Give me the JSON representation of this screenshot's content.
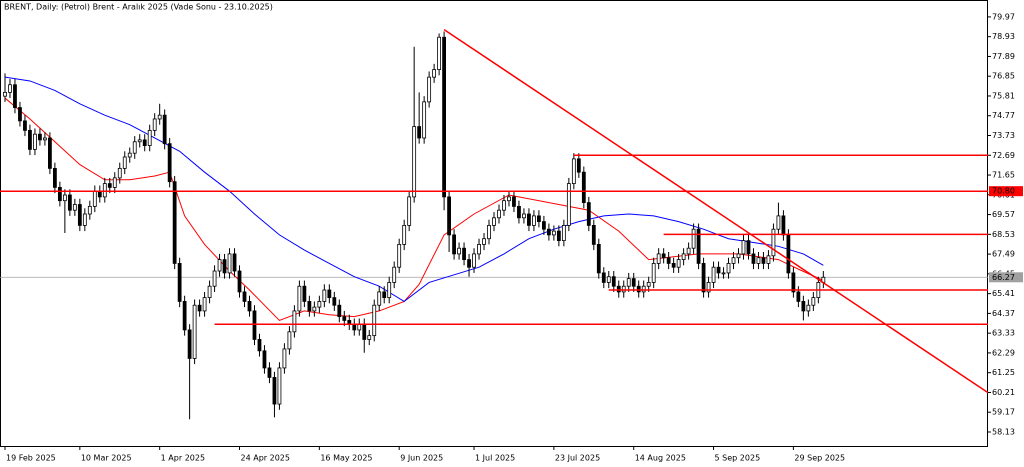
{
  "chart_data": {
    "type": "candlestick",
    "title": "BRENT, Daily:  (Petrol) Brent - Aralık 2025 (Vade Sonu - 23.10.2025)",
    "open": [
      75.8,
      76.0,
      76.4,
      75.2,
      74.5,
      74.0,
      73.0,
      73.8,
      73.5,
      73.6,
      72.0,
      71.0,
      70.3,
      70.6,
      69.8,
      70.1,
      69.0,
      69.6,
      70.0,
      70.8,
      70.5,
      71.2,
      71.0,
      71.5,
      72.0,
      72.6,
      72.8,
      73.4,
      73.5,
      73.2,
      74.0,
      74.6,
      74.8,
      73.3,
      71.3,
      67.0,
      65.0,
      63.5,
      62.0,
      64.8,
      64.5,
      65.2,
      65.8,
      66.6,
      67.2,
      66.5,
      67.5,
      66.6,
      65.5,
      65.0,
      64.5,
      63.0,
      62.4,
      61.5,
      61.0,
      59.6,
      61.5,
      62.5,
      63.4,
      64.5,
      65.8,
      65.0,
      64.5,
      64.7,
      65.0,
      65.6,
      65.2,
      64.8,
      64.2,
      64.0,
      63.8,
      63.5,
      63.8,
      63.0,
      63.2,
      64.8,
      65.5,
      65.2,
      66.0,
      66.8,
      68.0,
      69.0,
      70.5,
      74.2,
      73.6,
      75.5,
      76.8,
      77.2,
      78.9,
      70.5,
      68.5,
      67.5,
      67.8,
      67.2,
      66.8,
      67.5,
      68.0,
      68.3,
      69.0,
      69.4,
      69.8,
      70.3,
      70.5,
      70.0,
      69.4,
      69.6,
      69.0,
      69.5,
      69.2,
      68.8,
      68.5,
      68.7,
      68.2,
      69.0,
      71.2,
      72.5,
      71.8,
      70.2,
      69.0,
      68.0,
      66.5,
      66.0,
      66.3,
      65.8,
      65.5,
      65.8,
      66.2,
      65.8,
      65.5,
      65.8,
      66.0,
      67.0,
      67.5,
      67.3,
      67.0,
      66.8,
      67.2,
      67.5,
      67.8,
      68.8,
      67.0,
      65.5,
      66.0,
      66.8,
      66.5,
      66.5,
      67.0,
      67.3,
      67.5,
      68.2,
      67.5,
      67.0,
      67.3,
      67.0,
      67.4,
      68.8,
      69.5,
      68.5,
      66.5,
      65.5,
      65.0,
      64.5,
      64.8,
      65.2,
      66.0
    ],
    "high": [
      77.0,
      76.7,
      76.7,
      75.5,
      74.8,
      74.3,
      74.1,
      74.1,
      73.9,
      73.9,
      72.3,
      71.3,
      70.9,
      70.9,
      70.4,
      70.4,
      69.9,
      70.3,
      71.1,
      71.1,
      71.5,
      71.5,
      71.8,
      72.3,
      72.9,
      73.1,
      73.7,
      73.8,
      73.8,
      74.3,
      74.9,
      75.4,
      75.1,
      73.6,
      71.6,
      67.3,
      65.3,
      63.8,
      65.1,
      65.1,
      65.5,
      66.1,
      66.9,
      67.5,
      67.5,
      67.8,
      67.8,
      66.9,
      65.8,
      65.3,
      64.8,
      63.3,
      62.7,
      61.8,
      61.3,
      61.8,
      62.8,
      63.7,
      64.8,
      66.1,
      66.1,
      65.3,
      65.0,
      65.3,
      65.9,
      65.9,
      65.5,
      65.1,
      64.5,
      64.3,
      64.1,
      64.1,
      64.1,
      63.5,
      65.1,
      65.8,
      65.8,
      66.3,
      67.1,
      68.3,
      69.3,
      70.8,
      78.4,
      76.0,
      75.8,
      77.1,
      77.5,
      79.1,
      79.2,
      70.8,
      68.8,
      68.1,
      68.1,
      67.5,
      67.8,
      68.3,
      68.6,
      69.3,
      69.7,
      70.1,
      70.6,
      70.8,
      70.8,
      70.3,
      69.9,
      69.9,
      69.8,
      69.8,
      69.5,
      69.1,
      69.0,
      69.0,
      69.3,
      71.5,
      72.8,
      72.8,
      72.1,
      70.5,
      69.3,
      68.3,
      66.8,
      66.6,
      66.6,
      66.1,
      66.1,
      66.5,
      66.5,
      66.1,
      66.1,
      66.3,
      67.3,
      67.8,
      67.8,
      67.6,
      67.3,
      67.5,
      67.8,
      68.1,
      69.1,
      69.1,
      67.3,
      66.3,
      67.1,
      67.1,
      66.8,
      67.3,
      67.6,
      67.8,
      68.5,
      68.5,
      67.8,
      67.6,
      67.6,
      67.7,
      69.1,
      70.2,
      69.8,
      68.8,
      66.8,
      65.8,
      65.3,
      65.1,
      65.5,
      66.3,
      66.6
    ],
    "low": [
      75.5,
      75.7,
      74.9,
      74.2,
      73.7,
      72.7,
      72.7,
      73.2,
      73.2,
      71.7,
      70.7,
      70.0,
      68.6,
      69.5,
      69.5,
      68.7,
      68.7,
      69.3,
      69.7,
      70.2,
      70.2,
      70.7,
      70.7,
      71.2,
      71.7,
      72.3,
      72.5,
      73.1,
      72.9,
      72.9,
      73.7,
      74.3,
      73.0,
      71.0,
      66.7,
      64.7,
      63.2,
      58.8,
      61.7,
      64.2,
      64.2,
      64.9,
      65.5,
      66.3,
      66.2,
      66.2,
      66.3,
      65.2,
      64.7,
      64.2,
      62.7,
      62.1,
      61.2,
      60.7,
      58.9,
      59.3,
      61.2,
      62.2,
      63.1,
      64.2,
      64.7,
      64.2,
      64.2,
      64.4,
      64.7,
      64.9,
      64.5,
      63.9,
      63.7,
      63.5,
      63.2,
      63.2,
      62.3,
      62.7,
      62.9,
      64.5,
      64.9,
      64.9,
      65.7,
      66.5,
      67.7,
      68.7,
      70.2,
      73.3,
      73.3,
      75.2,
      76.5,
      76.9,
      69.8,
      67.6,
      67.2,
      67.2,
      66.9,
      66.3,
      66.5,
      67.2,
      67.7,
      68.0,
      68.7,
      69.1,
      69.5,
      70.0,
      69.7,
      69.1,
      69.1,
      68.7,
      68.7,
      68.9,
      68.5,
      68.2,
      68.2,
      67.9,
      67.9,
      68.7,
      70.9,
      71.5,
      69.9,
      68.7,
      67.7,
      66.2,
      65.7,
      65.7,
      65.5,
      65.2,
      65.2,
      65.5,
      65.5,
      65.2,
      65.2,
      65.5,
      65.7,
      66.7,
      67.0,
      66.7,
      66.5,
      66.5,
      66.9,
      67.2,
      67.5,
      66.7,
      65.2,
      65.2,
      65.7,
      66.2,
      66.2,
      66.2,
      66.7,
      67.0,
      67.2,
      67.2,
      66.7,
      66.7,
      66.7,
      66.7,
      67.1,
      68.5,
      68.2,
      66.2,
      65.2,
      64.7,
      64.0,
      64.2,
      64.5,
      64.9,
      65.7
    ],
    "close": [
      76.0,
      76.4,
      75.2,
      74.5,
      74.0,
      73.0,
      73.8,
      73.5,
      73.6,
      72.0,
      71.0,
      70.3,
      70.6,
      69.8,
      70.1,
      69.0,
      69.6,
      70.0,
      70.8,
      70.5,
      71.2,
      71.0,
      71.5,
      72.0,
      72.6,
      72.8,
      73.4,
      73.5,
      73.2,
      74.0,
      74.6,
      74.8,
      73.3,
      71.3,
      67.0,
      65.0,
      63.5,
      62.0,
      64.8,
      64.5,
      65.2,
      65.8,
      66.6,
      67.2,
      66.5,
      67.5,
      66.6,
      65.5,
      65.0,
      64.5,
      63.0,
      62.4,
      61.5,
      61.0,
      59.6,
      61.5,
      62.5,
      63.4,
      64.5,
      65.8,
      65.0,
      64.5,
      64.7,
      65.0,
      65.6,
      65.2,
      64.8,
      64.2,
      64.0,
      63.8,
      63.5,
      63.8,
      63.0,
      63.2,
      64.8,
      65.5,
      65.2,
      66.0,
      66.8,
      68.0,
      69.0,
      70.5,
      74.2,
      73.6,
      75.5,
      76.8,
      77.2,
      78.9,
      70.5,
      68.5,
      67.5,
      67.8,
      67.2,
      66.8,
      67.5,
      68.0,
      68.3,
      69.0,
      69.4,
      69.8,
      70.3,
      70.5,
      70.0,
      69.4,
      69.6,
      69.0,
      69.5,
      69.2,
      68.8,
      68.5,
      68.7,
      68.2,
      69.0,
      71.2,
      72.5,
      71.8,
      70.2,
      69.0,
      68.0,
      66.5,
      66.0,
      66.3,
      65.8,
      65.5,
      65.8,
      66.2,
      65.8,
      65.5,
      65.8,
      66.0,
      67.0,
      67.5,
      67.3,
      67.0,
      66.8,
      67.2,
      67.5,
      67.8,
      68.8,
      67.0,
      65.5,
      66.0,
      66.8,
      66.5,
      66.5,
      67.0,
      67.3,
      67.5,
      68.2,
      67.5,
      67.0,
      67.3,
      67.0,
      67.4,
      68.8,
      69.5,
      68.5,
      66.5,
      65.5,
      65.0,
      64.5,
      64.8,
      65.2,
      66.0,
      66.27
    ],
    "averages": [
      {
        "color": "#ff0000",
        "x": [
          0,
          5,
          10,
          15,
          20,
          25,
          30,
          33,
          36,
          40,
          45,
          49,
          55,
          60,
          65,
          70,
          75,
          80,
          83,
          88,
          94,
          101,
          111,
          117,
          123,
          129,
          139,
          147,
          155,
          159,
          164
        ],
        "values": [
          75.7,
          74.6,
          73.4,
          72.2,
          71.4,
          71.4,
          71.6,
          71.8,
          69.5,
          68.0,
          66.6,
          65.6,
          64.0,
          64.5,
          64.3,
          64.2,
          64.5,
          65.0,
          65.9,
          68.5,
          69.6,
          70.6,
          70.1,
          69.8,
          68.7,
          67.2,
          67.5,
          67.5,
          67.2,
          66.7,
          66.1
        ]
      },
      {
        "color": "#0000ff",
        "x": [
          0,
          5,
          10,
          15,
          20,
          25,
          30,
          35,
          40,
          45,
          50,
          55,
          60,
          65,
          70,
          75,
          80,
          85,
          90,
          95,
          100,
          105,
          110,
          115,
          120,
          125,
          130,
          135,
          140,
          145,
          150,
          155,
          160,
          164
        ],
        "values": [
          76.8,
          76.6,
          76.1,
          75.4,
          74.8,
          74.3,
          73.6,
          72.9,
          71.8,
          70.8,
          69.6,
          68.5,
          67.7,
          67.0,
          66.3,
          65.8,
          65.0,
          66.0,
          66.4,
          66.8,
          67.5,
          68.3,
          68.8,
          69.2,
          69.5,
          69.6,
          69.5,
          69.2,
          68.8,
          68.3,
          68.1,
          67.9,
          67.5,
          66.9
        ]
      }
    ],
    "levels": [
      {
        "value": 70.8,
        "from": -1,
        "color": "#ff0000"
      },
      {
        "value": 72.69,
        "from": 114,
        "color": "#ff0000"
      },
      {
        "value": 68.53,
        "from": 132,
        "color": "#ff0000"
      },
      {
        "value": 65.6,
        "from": 121,
        "color": "#ff0000"
      },
      {
        "value": 63.8,
        "from": 42,
        "color": "#ff0000"
      }
    ],
    "trendline": {
      "x": [
        88,
        197
      ],
      "values": [
        79.3,
        60.2
      ],
      "color": "#ff0000"
    },
    "price_labels": [
      {
        "value": 70.8,
        "label": "70.80",
        "color": "#ff0000"
      },
      {
        "value": 66.27,
        "label": "66.27",
        "color": "#a0a0a0"
      }
    ],
    "xlim": [
      -1,
      197
    ],
    "ylim": [
      57.34,
      80.86
    ],
    "yticks": [
      79.97,
      78.93,
      77.89,
      76.85,
      75.81,
      74.77,
      73.73,
      72.69,
      71.65,
      70.61,
      69.57,
      68.53,
      67.49,
      66.45,
      65.41,
      64.37,
      63.33,
      62.29,
      61.25,
      60.21,
      59.17,
      58.13
    ],
    "xticks": [
      {
        "value": 0,
        "label": "19 Feb 2025"
      },
      {
        "value": 15,
        "label": "10 Mar 2025"
      },
      {
        "value": 31,
        "label": "1 Apr 2025"
      },
      {
        "value": 47,
        "label": "24 Apr 2025"
      },
      {
        "value": 63,
        "label": "16 May 2025"
      },
      {
        "value": 79,
        "label": "9 Jun 2025"
      },
      {
        "value": 94,
        "label": "1 Jul 2025"
      },
      {
        "value": 110,
        "label": "23 Jul 2025"
      },
      {
        "value": 126,
        "label": "14 Aug 2025"
      },
      {
        "value": 142,
        "label": "5 Sep 2025"
      },
      {
        "value": 158,
        "label": "29 Sep 2025"
      }
    ],
    "up_color": "#ffffff",
    "down_color": "#000000",
    "wick_color": "#000000"
  }
}
